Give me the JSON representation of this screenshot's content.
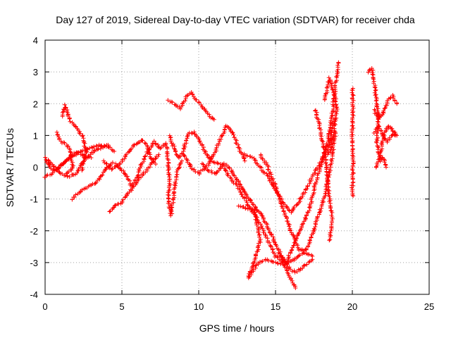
{
  "chart_data": {
    "type": "scatter",
    "title": "Day 127 of 2019, Sidereal Day-to-day VTEC variation (SDTVAR) for receiver chda",
    "xlabel": "GPS time / hours",
    "ylabel": "SDTVAR / TECUs",
    "xlim": [
      0,
      25
    ],
    "ylim": [
      -4,
      4
    ],
    "xticks": [
      0,
      5,
      10,
      15,
      20,
      25
    ],
    "yticks": [
      -4,
      -3,
      -2,
      -1,
      0,
      1,
      2,
      3,
      4
    ],
    "xtick_labels": [
      "0",
      "5",
      "10",
      "15",
      "20",
      "25"
    ],
    "ytick_labels": [
      "-4",
      "-3",
      "-2",
      "-1",
      "0",
      "1",
      "2",
      "3",
      "4"
    ],
    "grid": true,
    "marker": "+",
    "color": "#ff0000",
    "traces": [
      [
        [
          0.0,
          0.3
        ],
        [
          0.3,
          0.0
        ],
        [
          0.7,
          -0.1
        ],
        [
          1.1,
          0.1
        ],
        [
          1.6,
          0.3
        ],
        [
          2.2,
          0.45
        ],
        [
          2.9,
          0.6
        ],
        [
          3.5,
          0.7
        ],
        [
          4.2,
          0.65
        ],
        [
          4.5,
          0.5
        ]
      ],
      [
        [
          0.0,
          -0.3
        ],
        [
          0.4,
          -0.2
        ],
        [
          0.9,
          0.0
        ],
        [
          1.3,
          0.15
        ],
        [
          1.7,
          0.4
        ],
        [
          2.1,
          0.45
        ],
        [
          2.6,
          0.35
        ],
        [
          3.0,
          0.3
        ]
      ],
      [
        [
          0.2,
          0.25
        ],
        [
          0.6,
          0.0
        ],
        [
          1.0,
          -0.2
        ],
        [
          1.5,
          -0.3
        ],
        [
          2.0,
          -0.2
        ],
        [
          2.5,
          0.2
        ],
        [
          3.0,
          0.45
        ],
        [
          3.6,
          0.6
        ],
        [
          4.1,
          0.7
        ]
      ],
      [
        [
          1.1,
          1.6
        ],
        [
          1.3,
          1.95
        ],
        [
          1.6,
          1.5
        ],
        [
          2.0,
          1.25
        ],
        [
          2.4,
          1.0
        ],
        [
          2.7,
          0.5
        ],
        [
          2.5,
          0.2
        ],
        [
          2.4,
          -0.1
        ]
      ],
      [
        [
          0.8,
          1.1
        ],
        [
          1.0,
          0.8
        ],
        [
          1.3,
          0.75
        ],
        [
          1.6,
          0.6
        ],
        [
          1.8,
          0.0
        ],
        [
          1.4,
          -0.2
        ]
      ],
      [
        [
          1.8,
          -1.0
        ],
        [
          2.1,
          -0.85
        ],
        [
          2.6,
          -0.65
        ],
        [
          3.1,
          -0.55
        ],
        [
          3.5,
          -0.4
        ],
        [
          3.9,
          -0.1
        ],
        [
          4.2,
          0.05
        ],
        [
          4.4,
          0.15
        ]
      ],
      [
        [
          4.2,
          -1.4
        ],
        [
          4.6,
          -1.2
        ],
        [
          5.0,
          -1.1
        ],
        [
          5.4,
          -0.8
        ],
        [
          5.8,
          -0.6
        ],
        [
          6.2,
          -0.3
        ],
        [
          6.6,
          -0.1
        ],
        [
          7.0,
          0.2
        ],
        [
          7.4,
          0.4
        ]
      ],
      [
        [
          3.8,
          0.2
        ],
        [
          4.3,
          -0.05
        ],
        [
          4.8,
          0.05
        ],
        [
          5.3,
          0.4
        ],
        [
          5.6,
          0.6
        ],
        [
          6.0,
          0.75
        ],
        [
          6.3,
          0.85
        ],
        [
          6.6,
          0.7
        ],
        [
          6.9,
          0.3
        ],
        [
          7.2,
          0.1
        ]
      ],
      [
        [
          4.6,
          0.1
        ],
        [
          5.0,
          -0.1
        ],
        [
          5.4,
          -0.3
        ],
        [
          5.6,
          -0.6
        ],
        [
          5.9,
          -0.4
        ],
        [
          6.3,
          0.1
        ],
        [
          6.7,
          0.5
        ],
        [
          7.1,
          0.8
        ],
        [
          7.5,
          0.6
        ],
        [
          7.8,
          0.7
        ]
      ],
      [
        [
          8.0,
          2.1
        ],
        [
          8.4,
          2.0
        ],
        [
          8.8,
          1.85
        ],
        [
          9.2,
          2.2
        ],
        [
          9.5,
          2.35
        ],
        [
          9.9,
          2.1
        ],
        [
          10.3,
          1.85
        ],
        [
          10.7,
          1.6
        ],
        [
          11.0,
          1.5
        ]
      ],
      [
        [
          8.1,
          1.0
        ],
        [
          8.4,
          0.6
        ],
        [
          8.7,
          0.3
        ],
        [
          9.0,
          0.5
        ],
        [
          9.3,
          1.05
        ],
        [
          9.7,
          1.1
        ],
        [
          10.1,
          0.8
        ],
        [
          10.5,
          0.4
        ],
        [
          10.9,
          0.2
        ],
        [
          11.4,
          0.1
        ]
      ],
      [
        [
          7.9,
          0.75
        ],
        [
          8.1,
          -0.5
        ],
        [
          8.0,
          -1.0
        ],
        [
          8.2,
          -1.5
        ],
        [
          8.4,
          -0.8
        ],
        [
          8.6,
          -0.1
        ],
        [
          8.9,
          0.2
        ]
      ],
      [
        [
          9.0,
          0.4
        ],
        [
          9.5,
          0.0
        ],
        [
          10.0,
          -0.2
        ],
        [
          10.5,
          0.0
        ],
        [
          11.0,
          0.4
        ],
        [
          11.4,
          0.9
        ],
        [
          11.8,
          1.3
        ],
        [
          12.2,
          1.1
        ],
        [
          12.6,
          0.6
        ],
        [
          13.0,
          0.2
        ]
      ],
      [
        [
          10.2,
          0.1
        ],
        [
          10.6,
          -0.1
        ],
        [
          11.1,
          -0.2
        ],
        [
          11.6,
          0.1
        ],
        [
          12.0,
          0.0
        ],
        [
          12.5,
          -0.4
        ],
        [
          13.0,
          -0.8
        ],
        [
          13.6,
          -1.2
        ],
        [
          14.2,
          -1.6
        ],
        [
          14.8,
          -2.2
        ],
        [
          15.4,
          -2.8
        ],
        [
          15.9,
          -3.2
        ],
        [
          16.3,
          -3.3
        ],
        [
          16.9,
          -3.1
        ],
        [
          17.4,
          -2.9
        ]
      ],
      [
        [
          11.5,
          0.1
        ],
        [
          12.0,
          -0.3
        ],
        [
          12.5,
          -0.6
        ],
        [
          13.0,
          -1.0
        ],
        [
          13.5,
          -1.4
        ],
        [
          14.0,
          -1.8
        ],
        [
          14.5,
          -2.3
        ],
        [
          15.0,
          -2.8
        ],
        [
          15.5,
          -3.0
        ],
        [
          16.0,
          -3.5
        ],
        [
          16.3,
          -3.8
        ]
      ],
      [
        [
          12.6,
          -1.2
        ],
        [
          13.1,
          -1.3
        ],
        [
          13.6,
          -1.3
        ],
        [
          14.0,
          -2.3
        ],
        [
          13.6,
          -3.0
        ],
        [
          13.2,
          -3.5
        ],
        [
          13.9,
          -3.0
        ],
        [
          14.4,
          -2.9
        ],
        [
          15.0,
          -3.0
        ],
        [
          15.6,
          -3.05
        ],
        [
          16.2,
          -2.9
        ],
        [
          16.8,
          -2.7
        ],
        [
          17.4,
          -2.8
        ]
      ],
      [
        [
          13.0,
          0.4
        ],
        [
          13.5,
          0.3
        ],
        [
          14.0,
          0.0
        ],
        [
          14.5,
          -0.3
        ],
        [
          15.0,
          -0.7
        ],
        [
          15.5,
          -1.1
        ],
        [
          16.0,
          -1.4
        ],
        [
          16.5,
          -1.1
        ],
        [
          17.0,
          -0.7
        ],
        [
          17.5,
          -0.2
        ],
        [
          18.0,
          0.2
        ],
        [
          18.4,
          0.8
        ],
        [
          18.7,
          1.7
        ],
        [
          18.9,
          2.6
        ],
        [
          19.1,
          3.3
        ]
      ],
      [
        [
          14.0,
          0.4
        ],
        [
          14.5,
          0.0
        ],
        [
          15.0,
          -0.6
        ],
        [
          15.5,
          -1.3
        ],
        [
          16.0,
          -2.0
        ],
        [
          16.5,
          -2.6
        ],
        [
          17.0,
          -2.6
        ],
        [
          17.4,
          -2.1
        ],
        [
          17.8,
          -1.5
        ],
        [
          18.2,
          -0.9
        ],
        [
          18.6,
          0.1
        ],
        [
          18.9,
          1.1
        ]
      ],
      [
        [
          15.2,
          -2.7
        ],
        [
          15.7,
          -3.0
        ],
        [
          16.2,
          -2.4
        ],
        [
          16.7,
          -1.9
        ],
        [
          17.2,
          -1.3
        ],
        [
          17.6,
          -0.5
        ],
        [
          18.1,
          0.3
        ],
        [
          18.5,
          0.7
        ],
        [
          18.8,
          1.5
        ]
      ],
      [
        [
          17.6,
          1.8
        ],
        [
          17.9,
          1.2
        ],
        [
          18.2,
          0.5
        ],
        [
          18.4,
          -0.4
        ],
        [
          18.5,
          -1.0
        ],
        [
          18.7,
          -1.6
        ],
        [
          18.5,
          -2.3
        ]
      ],
      [
        [
          18.2,
          2.1
        ],
        [
          18.5,
          2.8
        ],
        [
          18.8,
          2.4
        ],
        [
          19.0,
          1.9
        ],
        [
          18.8,
          1.1
        ],
        [
          18.6,
          0.6
        ],
        [
          18.4,
          0.4
        ]
      ],
      [
        [
          20.0,
          2.5
        ],
        [
          20.05,
          1.9
        ],
        [
          20.0,
          0.9
        ],
        [
          20.05,
          0.2
        ],
        [
          20.0,
          -0.7
        ],
        [
          20.05,
          -0.9
        ]
      ],
      [
        [
          21.0,
          3.0
        ],
        [
          21.3,
          3.1
        ],
        [
          21.5,
          2.4
        ],
        [
          21.7,
          1.6
        ],
        [
          21.6,
          0.8
        ],
        [
          21.8,
          0.2
        ],
        [
          22.0,
          0.3
        ],
        [
          22.2,
          0.0
        ]
      ],
      [
        [
          21.4,
          1.1
        ],
        [
          21.7,
          1.3
        ],
        [
          22.0,
          1.0
        ],
        [
          22.3,
          0.8
        ],
        [
          22.6,
          1.05
        ],
        [
          22.8,
          1.0
        ]
      ],
      [
        [
          21.5,
          0.0
        ],
        [
          21.8,
          0.3
        ],
        [
          22.0,
          0.9
        ],
        [
          22.3,
          1.3
        ],
        [
          22.6,
          1.2
        ],
        [
          22.9,
          1.0
        ]
      ],
      [
        [
          21.4,
          1.8
        ],
        [
          21.7,
          1.5
        ],
        [
          22.0,
          1.7
        ],
        [
          22.3,
          2.1
        ],
        [
          22.6,
          2.25
        ],
        [
          22.9,
          2.0
        ]
      ]
    ]
  }
}
